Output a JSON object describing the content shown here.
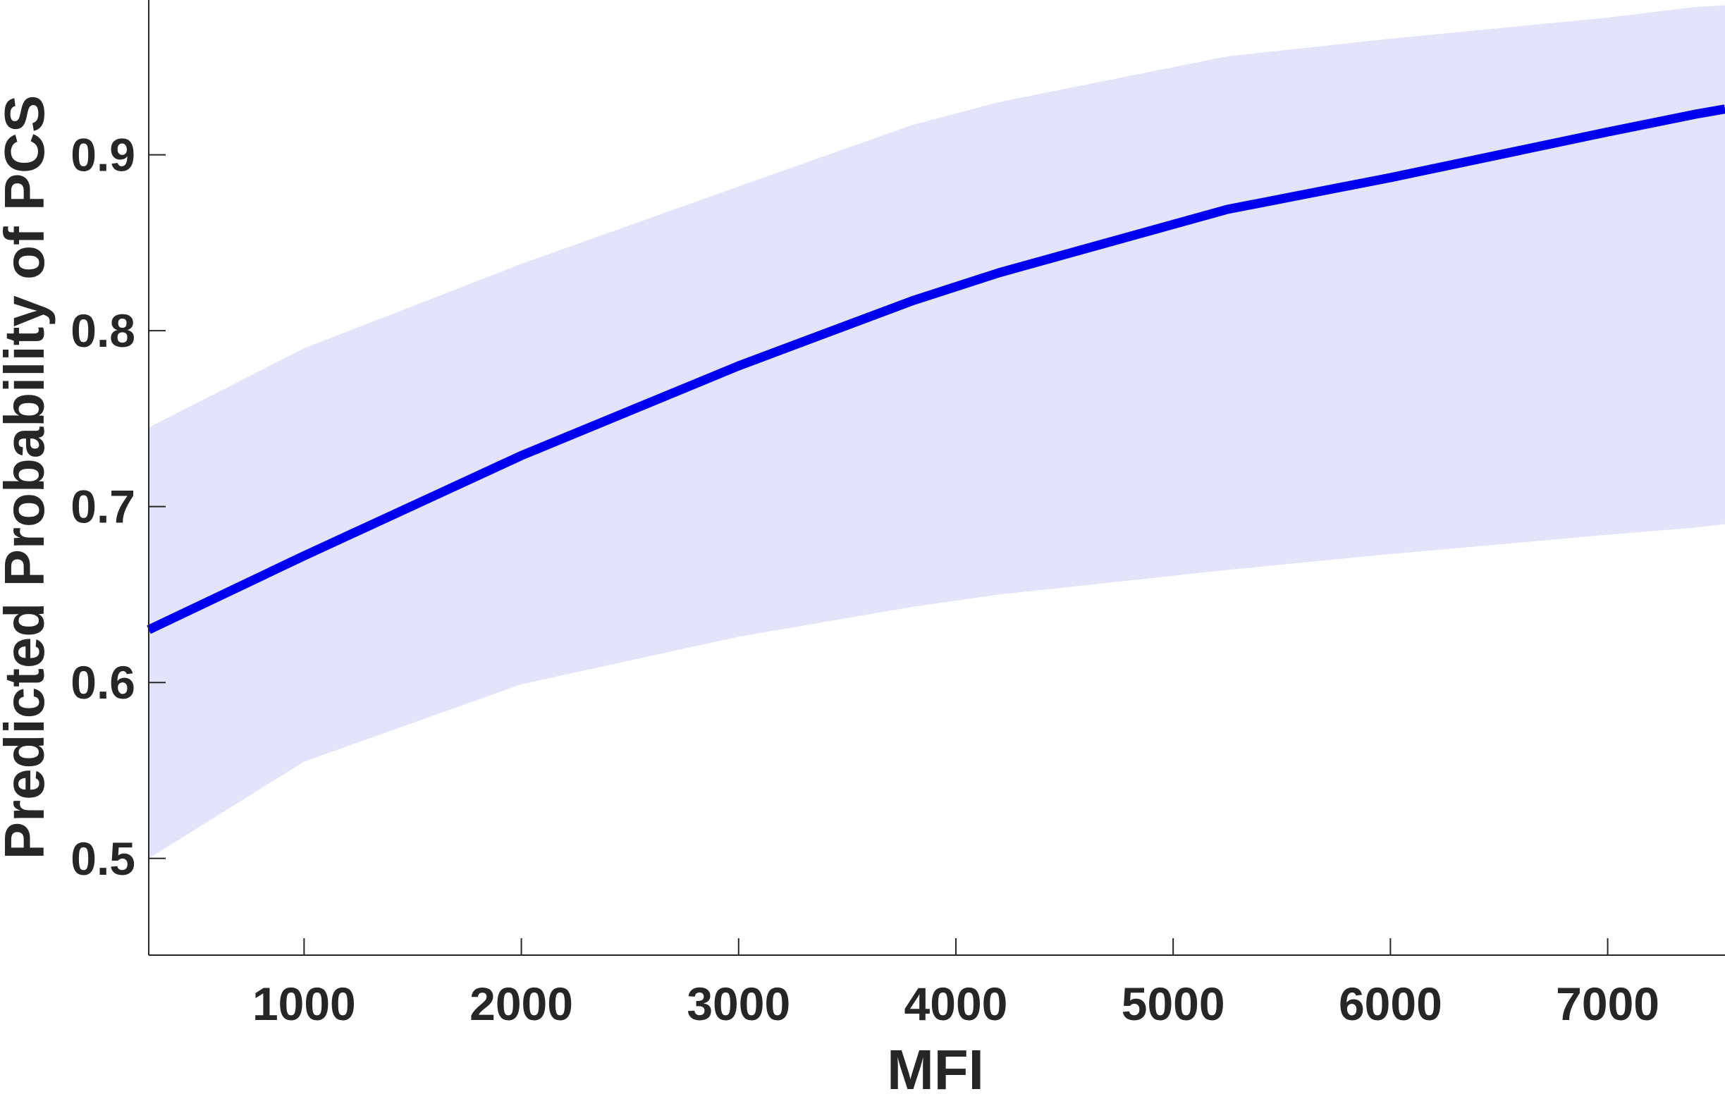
{
  "chart_data": {
    "type": "line",
    "title": "",
    "xlabel": "MFI",
    "ylabel": "Predicted Probability of PCS",
    "xlim": [
      285,
      7540
    ],
    "ylim": [
      0.445,
      0.988
    ],
    "xticks": [
      1000,
      2000,
      3000,
      4000,
      5000,
      6000,
      7000
    ],
    "yticks": [
      0.5,
      0.6,
      0.7,
      0.8,
      0.9
    ],
    "xtick_labels": [
      "1000",
      "2000",
      "3000",
      "4000",
      "5000",
      "6000",
      "7000"
    ],
    "ytick_labels": [
      "0.5",
      "0.6",
      "0.7",
      "0.8",
      "0.9"
    ],
    "grid": false,
    "legend": "none",
    "series": [
      {
        "x": [
          285,
          1000,
          2000,
          3000,
          3800,
          4200,
          5250,
          6000,
          7000,
          7400,
          7540
        ],
        "values": [
          0.63,
          0.672,
          0.729,
          0.78,
          0.817,
          0.833,
          0.869,
          0.887,
          0.913,
          0.923,
          0.926
        ],
        "color": "#0000ee"
      }
    ],
    "confidence_band": {
      "x": [
        285,
        1000,
        2000,
        3000,
        3800,
        4200,
        5250,
        6000,
        7000,
        7400,
        7540
      ],
      "upper": [
        0.745,
        0.79,
        0.838,
        0.882,
        0.917,
        0.93,
        0.956,
        0.966,
        0.978,
        0.984,
        0.985
      ],
      "lower": [
        0.5,
        0.555,
        0.599,
        0.626,
        0.643,
        0.65,
        0.664,
        0.673,
        0.684,
        0.688,
        0.69
      ],
      "color": "#e3e4fa"
    }
  }
}
